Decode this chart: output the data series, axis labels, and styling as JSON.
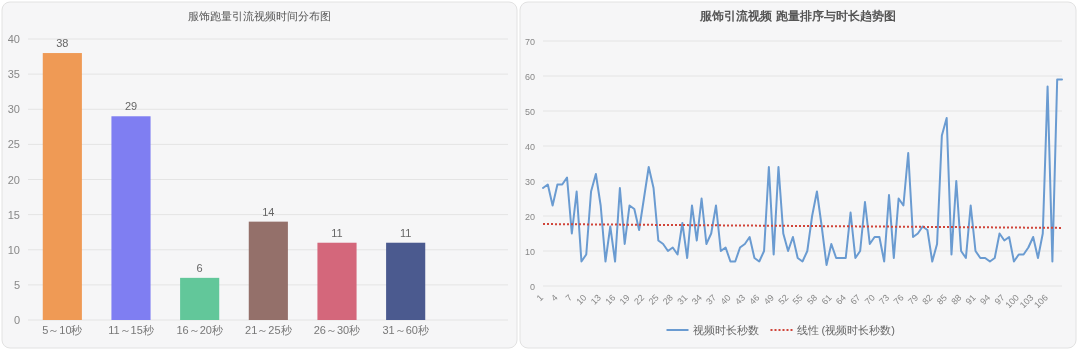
{
  "chart_data": [
    {
      "type": "bar",
      "title": "服饰跑量引流视频时间分布图",
      "categories": [
        "5～10秒",
        "11～15秒",
        "16～20秒",
        "21～25秒",
        "26～30秒",
        "31～60秒"
      ],
      "values": [
        38,
        29,
        6,
        14,
        11,
        11
      ],
      "colors": [
        "#ef9a55",
        "#7f7ef2",
        "#62c79a",
        "#94706a",
        "#d4677b",
        "#4b5a8f"
      ],
      "ylim": [
        0,
        40
      ],
      "yticks": [
        0,
        5,
        10,
        15,
        20,
        25,
        30,
        35,
        40
      ],
      "grid": "y",
      "data_labels": true
    },
    {
      "type": "line",
      "title": "服饰引流视频 跑量排序与时长趋势图",
      "x": [
        1,
        2,
        3,
        4,
        5,
        6,
        7,
        8,
        9,
        10,
        11,
        12,
        13,
        14,
        15,
        16,
        17,
        18,
        19,
        20,
        21,
        22,
        23,
        24,
        25,
        26,
        27,
        28,
        29,
        30,
        31,
        32,
        33,
        34,
        35,
        36,
        37,
        38,
        39,
        40,
        41,
        42,
        43,
        44,
        45,
        46,
        47,
        48,
        49,
        50,
        51,
        52,
        53,
        54,
        55,
        56,
        57,
        58,
        59,
        60,
        61,
        62,
        63,
        64,
        65,
        66,
        67,
        68,
        69,
        70,
        71,
        72,
        73,
        74,
        75,
        76,
        77,
        78,
        79,
        80,
        81,
        82,
        83,
        84,
        85,
        86,
        87,
        88,
        89,
        90,
        91,
        92,
        93,
        94,
        95,
        96,
        97,
        98,
        99,
        100,
        101,
        102,
        103,
        104,
        105,
        106,
        107,
        108,
        109
      ],
      "series": [
        {
          "name": "视频时长秒数",
          "color": "#6a9bd1",
          "values": [
            28,
            29,
            23,
            29,
            29,
            31,
            15,
            27,
            7,
            9,
            27,
            32,
            23,
            7,
            17,
            7,
            28,
            12,
            23,
            22,
            16,
            25,
            34,
            28,
            13,
            12,
            10,
            11,
            9,
            18,
            8,
            23,
            13,
            25,
            12,
            15,
            23,
            10,
            11,
            7,
            7,
            11,
            12,
            14,
            8,
            7,
            10,
            34,
            9,
            34,
            15,
            10,
            14,
            8,
            7,
            10,
            20,
            27,
            17,
            6,
            12,
            8,
            8,
            8,
            21,
            8,
            10,
            24,
            12,
            14,
            14,
            7,
            26,
            8,
            25,
            23,
            38,
            14,
            15,
            17,
            16,
            7,
            12,
            43,
            48,
            9,
            30,
            10,
            8,
            23,
            10,
            8,
            8,
            7,
            8,
            15,
            13,
            14,
            7,
            9,
            9,
            11,
            14,
            8,
            15,
            57,
            7,
            59,
            59
          ]
        },
        {
          "name": "线性 (视频时长秒数)",
          "type": "line",
          "color": "#d0453a",
          "line_style": "dotted",
          "x": [
            1,
            109
          ],
          "values": [
            17.7,
            16.6
          ]
        }
      ],
      "xlim": [
        1,
        109
      ],
      "xticks": [
        1,
        4,
        7,
        10,
        13,
        16,
        19,
        22,
        25,
        28,
        31,
        34,
        37,
        40,
        43,
        46,
        49,
        52,
        55,
        58,
        61,
        64,
        67,
        70,
        73,
        76,
        79,
        82,
        85,
        88,
        91,
        94,
        97,
        100,
        103,
        106
      ],
      "ylim": [
        0,
        70
      ],
      "yticks": [
        0,
        10,
        20,
        30,
        40,
        50,
        60,
        70
      ],
      "grid": "y",
      "legend": "bottom",
      "marker": "none",
      "line_style": "solid"
    }
  ]
}
